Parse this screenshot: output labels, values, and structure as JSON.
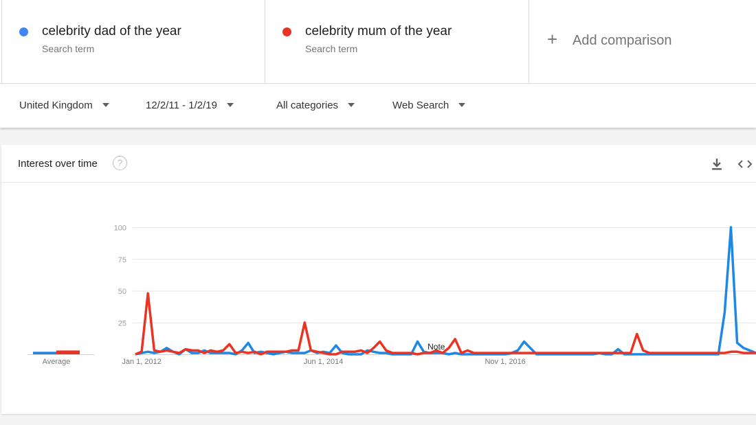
{
  "terms": [
    {
      "name": "celebrity dad of the year",
      "sub": "Search term",
      "color": "#4285f4"
    },
    {
      "name": "celebrity mum of the year",
      "sub": "Search term",
      "color": "#ea3323"
    }
  ],
  "add_comparison": "Add comparison",
  "filters": {
    "region": "United Kingdom",
    "date_range": "12/2/11 - 1/2/19",
    "category": "All categories",
    "property": "Web Search"
  },
  "card": {
    "title": "Interest over time",
    "help": "?"
  },
  "icons": {
    "download": "download-icon",
    "embed": "embed-code-icon",
    "help": "help-icon"
  },
  "chart_data": {
    "type": "line",
    "xlabel": "",
    "ylabel": "",
    "ylim": [
      0,
      100
    ],
    "yticks": [
      25,
      50,
      75,
      100
    ],
    "x_tick_labels": [
      "Jan 1, 2012",
      "Jun 1, 2014",
      "Nov 1, 2016"
    ],
    "x_tick_index": [
      1,
      30,
      59
    ],
    "note_label": "Note",
    "note_index": 48,
    "average_label": "Average",
    "averages": [
      2,
      3
    ],
    "series": [
      {
        "name": "celebrity dad of the year",
        "color": "#1e88e5",
        "values": [
          0,
          1,
          2,
          1,
          2,
          5,
          2,
          0,
          4,
          1,
          1,
          3,
          1,
          1,
          1,
          1,
          0,
          3,
          9,
          1,
          2,
          1,
          0,
          1,
          2,
          1,
          1,
          1,
          3,
          1,
          2,
          1,
          7,
          1,
          0,
          0,
          0,
          3,
          2,
          1,
          1,
          0,
          0,
          0,
          0,
          10,
          2,
          1,
          1,
          1,
          0,
          1,
          0,
          0,
          0,
          0,
          0,
          0,
          0,
          0,
          1,
          3,
          10,
          5,
          0,
          0,
          0,
          0,
          0,
          0,
          0,
          0,
          0,
          0,
          1,
          0,
          0,
          4,
          0,
          0,
          0,
          0,
          0,
          0,
          0,
          0,
          0,
          0,
          0,
          0,
          0,
          0,
          0,
          0,
          33,
          100,
          9,
          5,
          3,
          1
        ]
      },
      {
        "name": "celebrity mum of the year",
        "color": "#ea3323",
        "values": [
          0,
          2,
          48,
          3,
          2,
          3,
          2,
          1,
          4,
          3,
          3,
          1,
          3,
          2,
          3,
          8,
          1,
          2,
          1,
          2,
          0,
          2,
          2,
          2,
          2,
          3,
          3,
          25,
          3,
          2,
          1,
          0,
          0,
          2,
          2,
          2,
          3,
          1,
          5,
          10,
          3,
          1,
          1,
          1,
          1,
          0,
          1,
          1,
          3,
          1,
          5,
          12,
          1,
          3,
          1,
          1,
          1,
          1,
          1,
          1,
          1,
          1,
          1,
          1,
          1,
          1,
          1,
          1,
          1,
          1,
          1,
          1,
          1,
          1,
          1,
          1,
          1,
          1,
          1,
          1,
          16,
          3,
          1,
          1,
          1,
          1,
          1,
          1,
          1,
          1,
          1,
          1,
          1,
          1,
          1,
          2,
          2,
          1,
          1,
          1
        ]
      }
    ]
  }
}
